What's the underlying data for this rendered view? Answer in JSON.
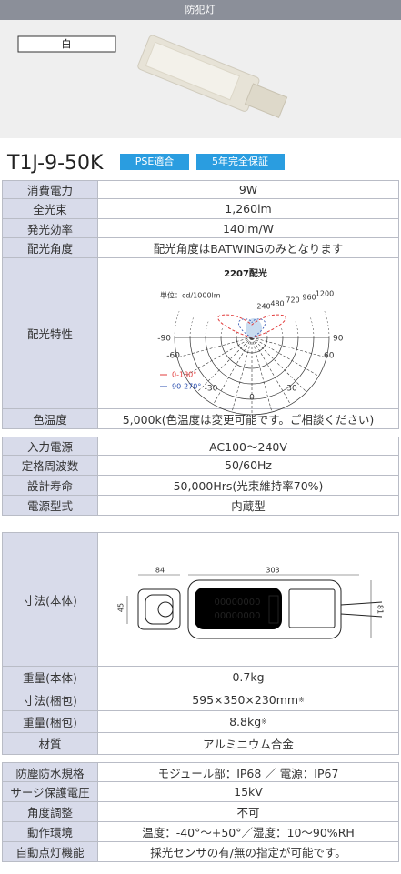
{
  "header": {
    "title": "防犯灯"
  },
  "product": {
    "color_label": "白",
    "model": "T1J-9-50K",
    "badges": [
      "PSE適合",
      "5年完全保証"
    ]
  },
  "tables": [
    {
      "rows": [
        {
          "label": "消費電力",
          "value": "9W"
        },
        {
          "label": "全光束",
          "value": "1,260lm"
        },
        {
          "label": "発光効率",
          "value": "140lm/W"
        },
        {
          "label": "配光角度",
          "value": "配光角度はBATWINGのみとなります"
        },
        {
          "label": "配光特性"
        },
        {
          "label": "色温度",
          "value": "5,000k(色温度は変更可能です。ご相談ください)"
        }
      ]
    },
    {
      "rows": [
        {
          "label": "入力電源",
          "value": "AC100～240V"
        },
        {
          "label": "定格周波数",
          "value": "50/60Hz"
        },
        {
          "label": "設計寿命",
          "value": "50,000Hrs(光束維持率70%)"
        },
        {
          "label": "電源型式",
          "value": "内蔵型"
        }
      ]
    },
    {
      "rows": [
        {
          "label": "寸法(本体)"
        },
        {
          "label": "重量(本体)",
          "value": "0.7kg"
        },
        {
          "label": "寸法(梱包)",
          "value": "595×350×230mm",
          "note": "※"
        },
        {
          "label": "重量(梱包)",
          "value": "8.8kg",
          "note": "※"
        },
        {
          "label": "材質",
          "value": "アルミニウム合金"
        }
      ]
    },
    {
      "rows": [
        {
          "label": "防塵防水規格",
          "value": "モジュール部：IP68 ／ 電源：IP67"
        },
        {
          "label": "サージ保護電圧",
          "value": "15kV"
        },
        {
          "label": "角度調整",
          "value": "不可"
        },
        {
          "label": "動作環境",
          "value": "温度：-40°～+50°／湿度：10～90%RH"
        },
        {
          "label": "自動点灯機能",
          "value": "採光センサの有/無の指定が可能です。"
        }
      ]
    }
  ],
  "light_distribution": {
    "title": "2207配光",
    "unit": "単位：cd/1000lm",
    "radial_labels": [
      "240",
      "480",
      "720",
      "960",
      "1200"
    ],
    "angle_labels": [
      "-90",
      "90",
      "-60",
      "60",
      "-30",
      "30",
      "0"
    ],
    "legend": [
      "0-180°",
      "90-270°"
    ]
  },
  "dimension_drawing": {
    "labels": [
      "84",
      "303",
      "45",
      "81"
    ],
    "module_digits": [
      "00000000",
      "00000000"
    ]
  }
}
